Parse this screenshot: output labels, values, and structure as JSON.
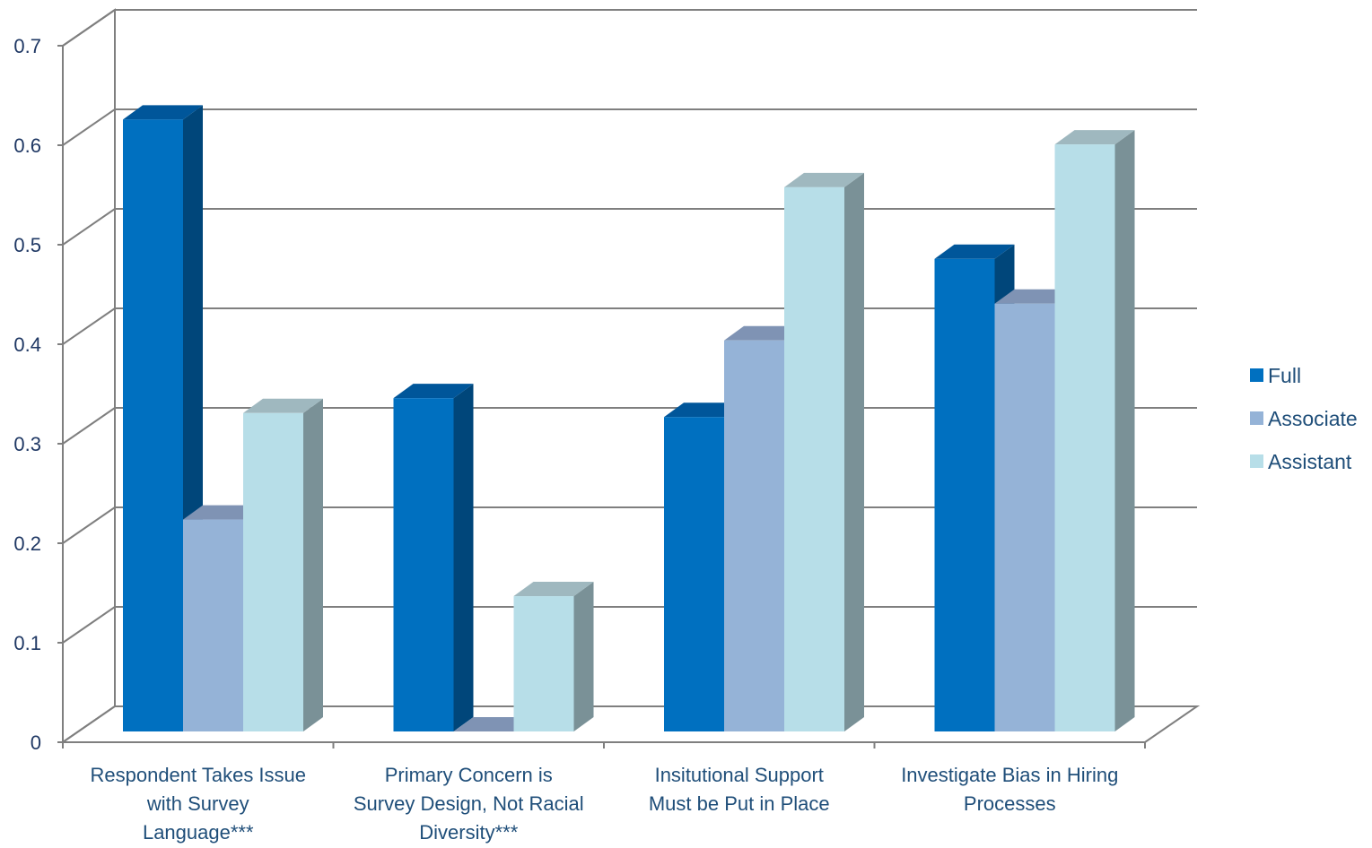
{
  "chart_data": {
    "type": "bar",
    "title": "",
    "xlabel": "",
    "ylabel": "",
    "ylim": [
      0,
      0.7
    ],
    "yticks": [
      "0",
      "0.1",
      "0.2",
      "0.3",
      "0.4",
      "0.5",
      "0.6",
      "0.7"
    ],
    "grid": true,
    "legend_position": "right",
    "categories": [
      [
        "Respondent Takes Issue",
        "with Survey",
        "Language***"
      ],
      [
        "Primary Concern is",
        "Survey Design, Not Racial",
        "Diversity***"
      ],
      [
        "Insitutional Support",
        "Must be Put in Place"
      ],
      [
        "Investigate Bias in Hiring",
        "Processes"
      ]
    ],
    "series": [
      {
        "name": "Full",
        "color": "#0070c0",
        "values": [
          0.615,
          0.335,
          0.316,
          0.475
        ]
      },
      {
        "name": "Associate",
        "color": "#95b3d7",
        "values": [
          0.213,
          0.0,
          0.393,
          0.43
        ]
      },
      {
        "name": "Assistant",
        "color": "#b7dee8",
        "values": [
          0.32,
          0.136,
          0.547,
          0.59
        ]
      }
    ]
  }
}
